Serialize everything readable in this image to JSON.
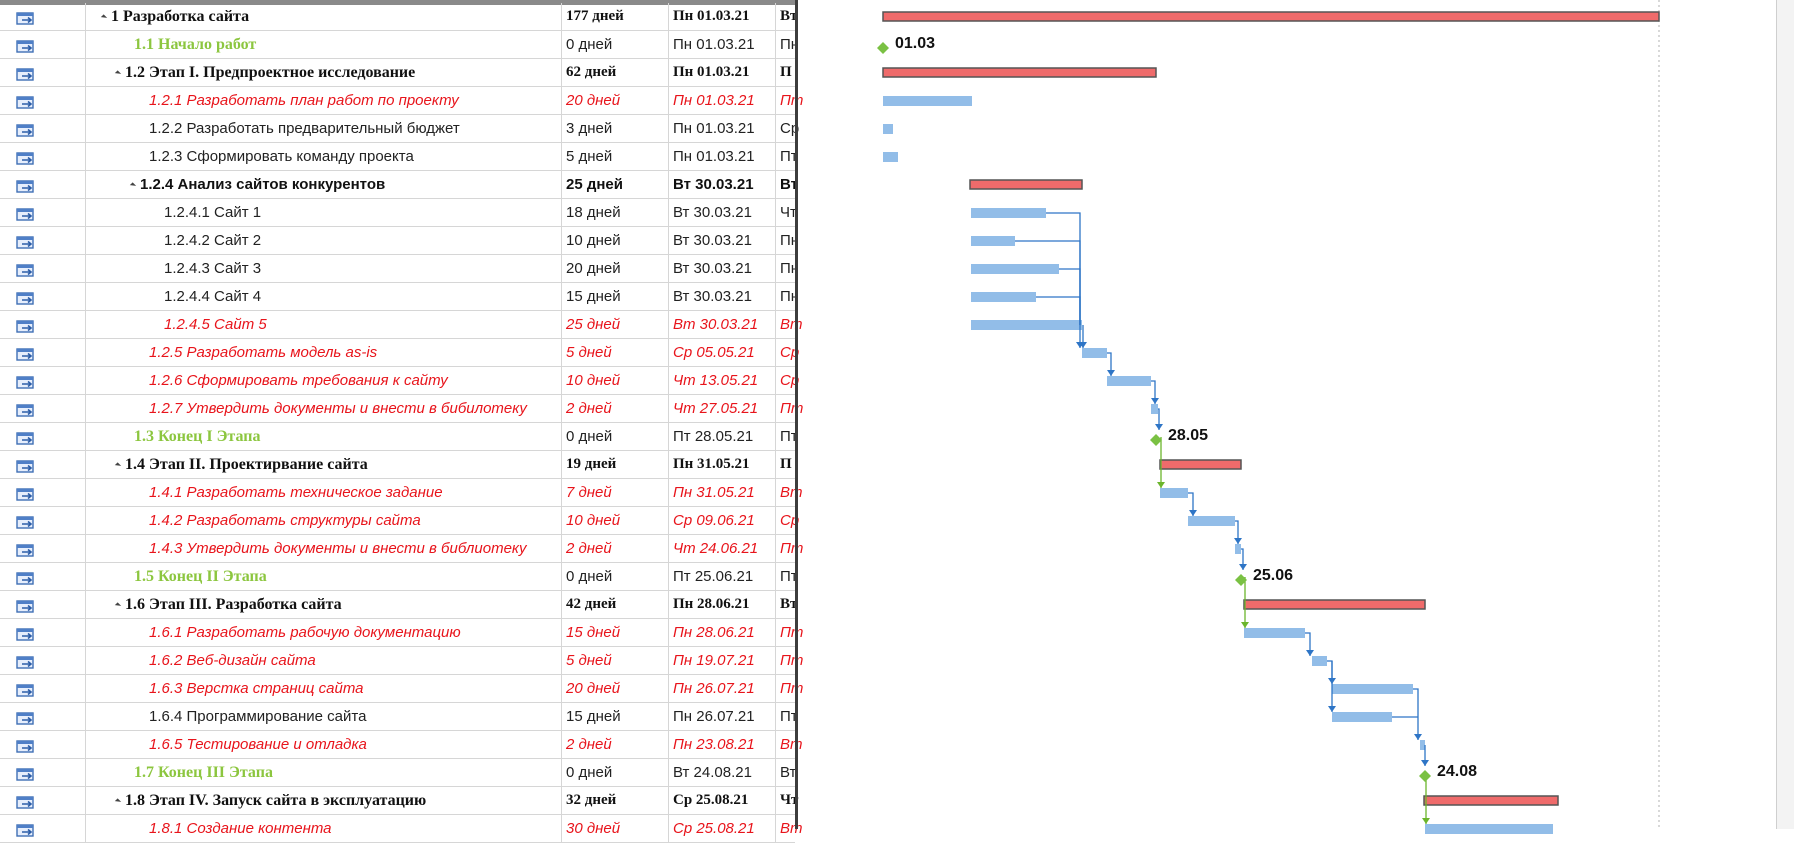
{
  "rows": [
    {
      "kind": "summary",
      "level": 0,
      "name": "1 Разработка сайта",
      "duration": "177 дней",
      "start": "Пн 01.03.21",
      "finish": "Вт"
    },
    {
      "kind": "milestone",
      "level": 1,
      "name": "1.1 Начало работ",
      "duration": "0 дней",
      "start": "Пн 01.03.21",
      "finish": "Пн"
    },
    {
      "kind": "summary",
      "level": 1,
      "name": "1.2 Этап I. Предпроектное исследование",
      "duration": "62 дней",
      "start": "Пн 01.03.21",
      "finish": "П"
    },
    {
      "kind": "critical",
      "level": 2,
      "name": "1.2.1 Разработать план работ по проекту",
      "duration": "20 дней",
      "start": "Пн 01.03.21",
      "finish": "Пт"
    },
    {
      "kind": "normal",
      "level": 2,
      "name": "1.2.2 Разработать предварительный бюджет",
      "duration": "3 дней",
      "start": "Пн 01.03.21",
      "finish": "Ср"
    },
    {
      "kind": "normal",
      "level": 2,
      "name": "1.2.3 Сформировать команду проекта",
      "duration": "5 дней",
      "start": "Пн 01.03.21",
      "finish": "Пт"
    },
    {
      "kind": "summary-sans",
      "level": 2,
      "name": "1.2.4 Анализ сайтов конкурентов",
      "duration": "25 дней",
      "start": "Вт 30.03.21",
      "finish": "Вт"
    },
    {
      "kind": "normal",
      "level": 3,
      "name": "1.2.4.1 Сайт 1",
      "duration": "18 дней",
      "start": "Вт 30.03.21",
      "finish": "Чт"
    },
    {
      "kind": "normal",
      "level": 3,
      "name": "1.2.4.2 Сайт 2",
      "duration": "10 дней",
      "start": "Вт 30.03.21",
      "finish": "Пн"
    },
    {
      "kind": "normal",
      "level": 3,
      "name": "1.2.4.3 Сайт 3",
      "duration": "20 дней",
      "start": "Вт 30.03.21",
      "finish": "Пн"
    },
    {
      "kind": "normal",
      "level": 3,
      "name": "1.2.4.4 Сайт 4",
      "duration": "15 дней",
      "start": "Вт 30.03.21",
      "finish": "Пн"
    },
    {
      "kind": "critical",
      "level": 3,
      "name": "1.2.4.5 Сайт 5",
      "duration": "25 дней",
      "start": "Вт 30.03.21",
      "finish": "Вт"
    },
    {
      "kind": "critical",
      "level": 2,
      "name": "1.2.5 Разработать модель as-is",
      "duration": "5 дней",
      "start": "Ср 05.05.21",
      "finish": "Ср"
    },
    {
      "kind": "critical",
      "level": 2,
      "name": "1.2.6 Сформировать требования к сайту",
      "duration": "10 дней",
      "start": "Чт 13.05.21",
      "finish": "Ср"
    },
    {
      "kind": "critical",
      "level": 2,
      "name": "1.2.7 Утвердить документы и внести в бибилотеку",
      "duration": "2 дней",
      "start": "Чт 27.05.21",
      "finish": "Пт"
    },
    {
      "kind": "milestone",
      "level": 1,
      "name": "1.3 Конец I Этапа",
      "duration": "0 дней",
      "start": "Пт 28.05.21",
      "finish": "Пт"
    },
    {
      "kind": "summary",
      "level": 1,
      "name": "1.4 Этап II. Проектирвание сайта",
      "duration": "19 дней",
      "start": "Пн 31.05.21",
      "finish": "П"
    },
    {
      "kind": "critical",
      "level": 2,
      "name": "1.4.1 Разработать техническое задание",
      "duration": "7 дней",
      "start": "Пн 31.05.21",
      "finish": "Вт"
    },
    {
      "kind": "critical",
      "level": 2,
      "name": "1.4.2 Разработать структуры сайта",
      "duration": "10 дней",
      "start": "Ср 09.06.21",
      "finish": "Ср"
    },
    {
      "kind": "critical",
      "level": 2,
      "name": "1.4.3 Утвердить документы и внести в библиотеку",
      "duration": "2 дней",
      "start": "Чт 24.06.21",
      "finish": "Пт"
    },
    {
      "kind": "milestone",
      "level": 1,
      "name": "1.5 Конец II Этапа",
      "duration": "0 дней",
      "start": "Пт 25.06.21",
      "finish": "Пт"
    },
    {
      "kind": "summary",
      "level": 1,
      "name": "1.6 Этап III. Разработка сайта",
      "duration": "42 дней",
      "start": "Пн 28.06.21",
      "finish": "Вт"
    },
    {
      "kind": "critical",
      "level": 2,
      "name": "1.6.1 Разработать рабочую документацию",
      "duration": "15 дней",
      "start": "Пн 28.06.21",
      "finish": "Пт"
    },
    {
      "kind": "critical",
      "level": 2,
      "name": "1.6.2 Веб-дизайн сайта",
      "duration": "5 дней",
      "start": "Пн 19.07.21",
      "finish": "Пт"
    },
    {
      "kind": "critical",
      "level": 2,
      "name": "1.6.3 Верстка страниц сайта",
      "duration": "20 дней",
      "start": "Пн 26.07.21",
      "finish": "Пт"
    },
    {
      "kind": "normal",
      "level": 2,
      "name": "1.6.4 Программирование сайта",
      "duration": "15 дней",
      "start": "Пн 26.07.21",
      "finish": "Пт"
    },
    {
      "kind": "critical",
      "level": 2,
      "name": "1.6.5 Тестирование и отладка",
      "duration": "2 дней",
      "start": "Пн 23.08.21",
      "finish": "Вт"
    },
    {
      "kind": "milestone",
      "level": 1,
      "name": "1.7 Конец III Этапа",
      "duration": "0 дней",
      "start": "Вт 24.08.21",
      "finish": "Вт"
    },
    {
      "kind": "summary",
      "level": 1,
      "name": "1.8 Этап IV. Запуск сайта в эксплуатацию",
      "duration": "32 дней",
      "start": "Ср 25.08.21",
      "finish": "Чт"
    },
    {
      "kind": "critical",
      "level": 2,
      "name": "1.8.1 Создание контента",
      "duration": "30 дней",
      "start": "Ср 25.08.21",
      "finish": "Вт"
    }
  ],
  "milestone_labels": [
    {
      "row": 1,
      "text": "01.03"
    },
    {
      "row": 15,
      "text": "28.05"
    },
    {
      "row": 20,
      "text": "25.06"
    },
    {
      "row": 27,
      "text": "24.08"
    }
  ],
  "colors": {
    "critical_text": "#e8141b",
    "milestone_text": "#8cc63f",
    "summary_bar": "#ef6b6b",
    "task_bar": "#92bde8",
    "link_blue": "#2e75c6",
    "link_green": "#6bb52c",
    "milestone_marker": "#7ac143"
  },
  "icons": [
    "task-mode-auto-icon",
    "collapse-triangle-icon",
    "milestone-diamond-icon"
  ]
}
